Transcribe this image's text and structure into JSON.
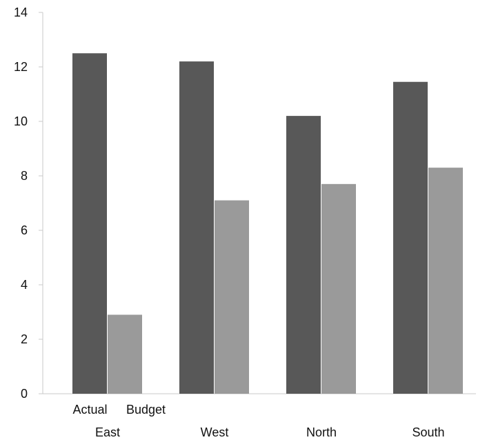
{
  "chart_data": {
    "type": "bar",
    "categories": [
      "East",
      "West",
      "North",
      "South"
    ],
    "series": [
      {
        "name": "Actual",
        "values": [
          12.5,
          12.2,
          10.2,
          11.45
        ],
        "color": "#585858"
      },
      {
        "name": "Budget",
        "values": [
          2.9,
          7.1,
          7.7,
          8.3
        ],
        "color": "#9a9a9a"
      }
    ],
    "y_ticks": [
      "0",
      "2",
      "4",
      "6",
      "8",
      "10",
      "12",
      "14"
    ],
    "ylim": [
      0,
      14
    ],
    "grid": false,
    "series_labels_under_first_category": true
  }
}
